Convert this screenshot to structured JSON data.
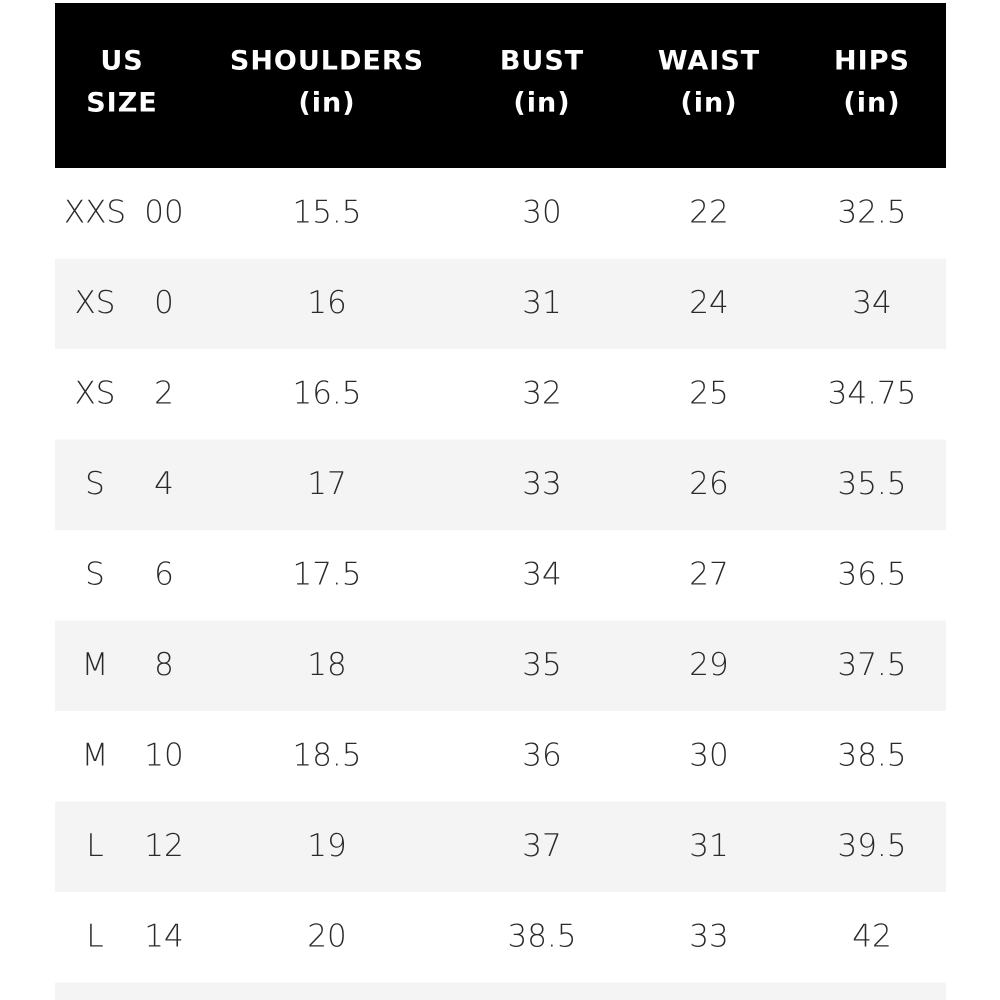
{
  "table": {
    "header": [
      [
        "US",
        "SIZE"
      ],
      [
        "SHOULDERS",
        "(in)"
      ],
      [
        "BUST",
        "(in)"
      ],
      [
        "WAIST",
        "(in)"
      ],
      [
        "HIPS",
        "(in)"
      ]
    ],
    "rows": [
      [
        [
          "XXS",
          "00"
        ],
        15.5,
        30,
        22,
        32.5
      ],
      [
        [
          "XS",
          "0"
        ],
        16,
        31,
        24,
        34
      ],
      [
        [
          "XS",
          "2"
        ],
        16.5,
        32,
        25,
        34.75
      ],
      [
        [
          "S",
          "4"
        ],
        17,
        33,
        26,
        35.5
      ],
      [
        [
          "S",
          "6"
        ],
        17.5,
        34,
        27,
        36.5
      ],
      [
        [
          "M",
          "8"
        ],
        18,
        35,
        29,
        37.5
      ],
      [
        [
          "M",
          "10"
        ],
        18.5,
        36,
        30,
        38.5
      ],
      [
        [
          "L",
          "12"
        ],
        19,
        37,
        31,
        39.5
      ],
      [
        [
          "L",
          "14"
        ],
        20,
        38.5,
        33,
        42
      ]
    ]
  }
}
